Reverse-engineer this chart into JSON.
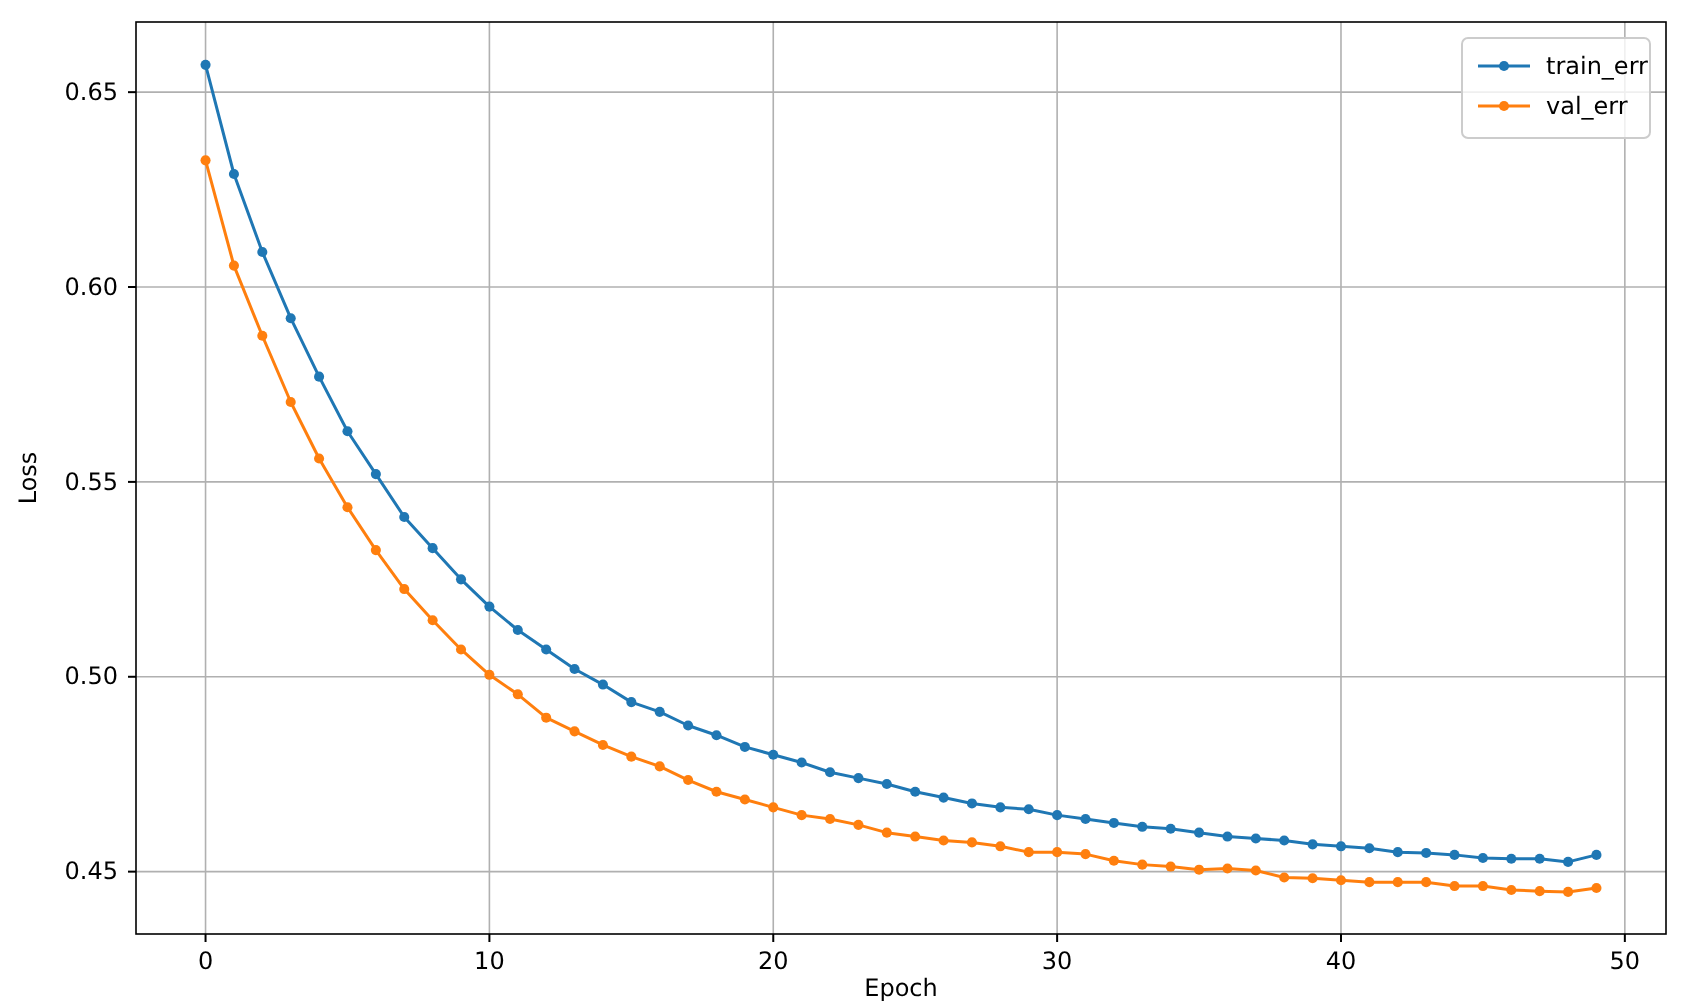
{
  "chart_data": {
    "type": "line",
    "xlabel": "Epoch",
    "ylabel": "Loss",
    "x": [
      0,
      1,
      2,
      3,
      4,
      5,
      6,
      7,
      8,
      9,
      10,
      11,
      12,
      13,
      14,
      15,
      16,
      17,
      18,
      19,
      20,
      21,
      22,
      23,
      24,
      25,
      26,
      27,
      28,
      29,
      30,
      31,
      32,
      33,
      34,
      35,
      36,
      37,
      38,
      39,
      40,
      41,
      42,
      43,
      44,
      45,
      46,
      47,
      48,
      49
    ],
    "series": [
      {
        "name": "train_err",
        "color": "#1f77b4",
        "values": [
          0.657,
          0.629,
          0.609,
          0.592,
          0.577,
          0.563,
          0.552,
          0.541,
          0.533,
          0.525,
          0.518,
          0.512,
          0.507,
          0.502,
          0.498,
          0.4935,
          0.491,
          0.4875,
          0.485,
          0.482,
          0.48,
          0.478,
          0.4755,
          0.474,
          0.4725,
          0.4705,
          0.469,
          0.4675,
          0.4665,
          0.466,
          0.4645,
          0.4635,
          0.4625,
          0.4615,
          0.461,
          0.46,
          0.459,
          0.4585,
          0.458,
          0.457,
          0.4565,
          0.456,
          0.455,
          0.4548,
          0.4543,
          0.4535,
          0.4533,
          0.4533,
          0.4525,
          0.4543
        ]
      },
      {
        "name": "val_err",
        "color": "#ff7f0e",
        "values": [
          0.6325,
          0.6055,
          0.5875,
          0.5705,
          0.556,
          0.5435,
          0.5325,
          0.5225,
          0.5145,
          0.507,
          0.5005,
          0.4955,
          0.4895,
          0.486,
          0.4825,
          0.4795,
          0.477,
          0.4735,
          0.4705,
          0.4685,
          0.4665,
          0.4645,
          0.4635,
          0.462,
          0.46,
          0.459,
          0.458,
          0.4575,
          0.4565,
          0.455,
          0.455,
          0.4545,
          0.4528,
          0.4518,
          0.4513,
          0.4505,
          0.4508,
          0.4503,
          0.4485,
          0.4483,
          0.4478,
          0.4473,
          0.4473,
          0.4473,
          0.4463,
          0.4463,
          0.4453,
          0.445,
          0.4448,
          0.4458
        ]
      }
    ],
    "xlim": [
      -2.45,
      51.45
    ],
    "xticks": [
      0,
      10,
      20,
      30,
      40,
      50
    ],
    "ylim": [
      0.434,
      0.668
    ],
    "yticks": [
      {
        "value": 0.45,
        "label": "0.45"
      },
      {
        "value": 0.5,
        "label": "0.50"
      },
      {
        "value": 0.55,
        "label": "0.55"
      },
      {
        "value": 0.6,
        "label": "0.60"
      },
      {
        "value": 0.65,
        "label": "0.65"
      }
    ],
    "grid": true,
    "legend": "top right",
    "marker": "circle",
    "line_style": "solid"
  }
}
